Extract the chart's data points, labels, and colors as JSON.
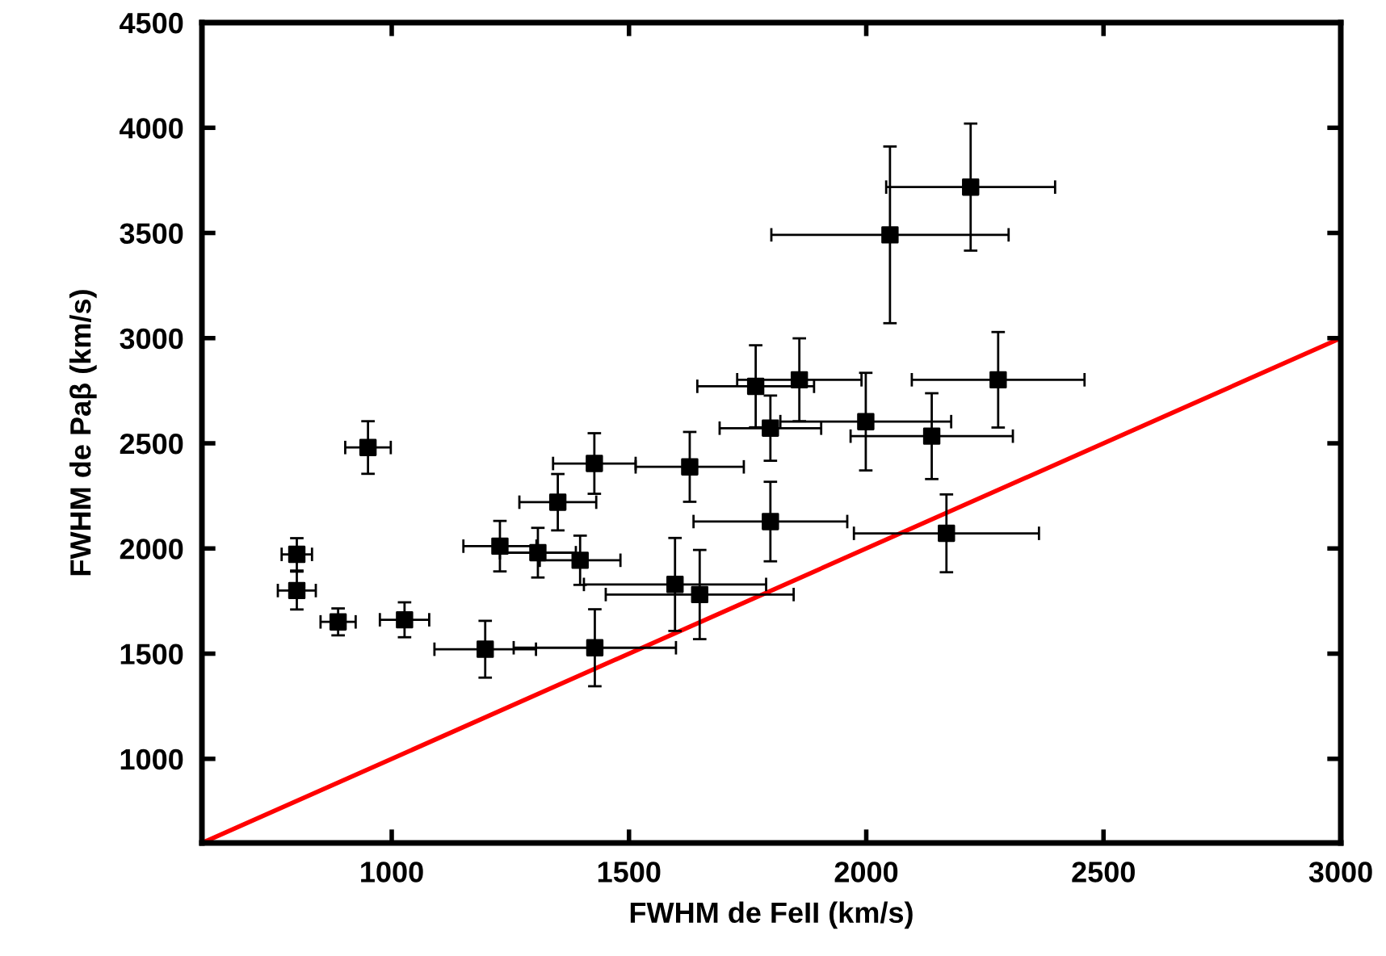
{
  "chart_data": {
    "type": "scatter",
    "xlabel": "FWHM de FeII (km/s)",
    "ylabel": "FWHM de Paβ (km/s)",
    "xlim": [
      600,
      3000
    ],
    "ylim": [
      600,
      4500
    ],
    "xticks": [
      1000,
      1500,
      2000,
      2500,
      3000
    ],
    "yticks": [
      1000,
      1500,
      2000,
      2500,
      3000,
      3500,
      4000,
      4500
    ],
    "grid": false,
    "legend": false,
    "marker": "square",
    "series": [
      {
        "color": "#000000",
        "x": [
          950,
          800,
          800,
          887,
          1027,
          1197,
          1428,
          1228,
          1308,
          1397,
          1350,
          1427,
          1628,
          1597,
          1649,
          1798,
          1798,
          1767,
          1859,
          1999,
          2138,
          2169,
          2278,
          2050,
          2220
        ],
        "values": [
          2480,
          1972,
          1800,
          1651,
          1661,
          1521,
          1528,
          2011,
          1980,
          1944,
          2220,
          2404,
          2388,
          1829,
          1781,
          2128,
          2572,
          2771,
          2802,
          2603,
          2534,
          2072,
          2802,
          3491,
          3718
        ],
        "xerrors": [
          48,
          32,
          40,
          37,
          52,
          107,
          171,
          77,
          80,
          85,
          81,
          87,
          114,
          192,
          198,
          162,
          107,
          123,
          131,
          180,
          171,
          195,
          182,
          250,
          178
        ],
        "errors": [
          125,
          77,
          90,
          64,
          83,
          135,
          183,
          120,
          118,
          117,
          134,
          144,
          166,
          221,
          212,
          189,
          155,
          195,
          197,
          232,
          204,
          185,
          227,
          420,
          302
        ]
      },
      {
        "type": "line",
        "color": "#ff0000",
        "line_style": "solid",
        "marker": "none",
        "x": [
          600,
          3000
        ],
        "values": [
          600,
          3000
        ]
      }
    ]
  }
}
